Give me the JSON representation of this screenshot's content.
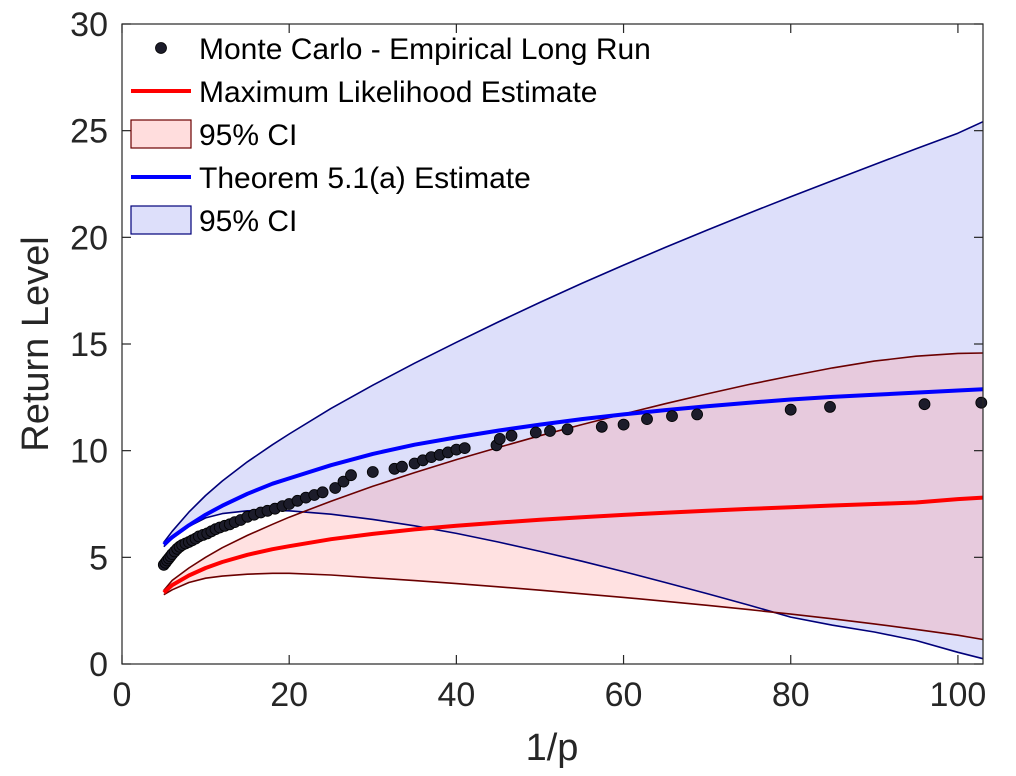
{
  "chart_data": {
    "type": "line",
    "xlabel": "1/p",
    "ylabel": "Return Level",
    "xlim": [
      0,
      103
    ],
    "ylim": [
      0,
      30
    ],
    "xticks": [
      "0",
      "20",
      "40",
      "60",
      "80",
      "100"
    ],
    "yticks": [
      "0",
      "5",
      "10",
      "15",
      "20",
      "25",
      "30"
    ],
    "legend_position": "top-left",
    "legend": [
      {
        "label": "Monte Carlo - Empirical Long Run",
        "kind": "marker",
        "color": "#000000"
      },
      {
        "label": "Maximum Likelihood Estimate",
        "kind": "line",
        "color": "#ff0000"
      },
      {
        "label": "95% CI",
        "kind": "patch",
        "color": "#ffdddd",
        "edge": "#6b0000"
      },
      {
        "label": "Theorem 5.1(a) Estimate",
        "kind": "line",
        "color": "#0000ff"
      },
      {
        "label": "95% CI",
        "kind": "patch",
        "color": "#dddffa",
        "edge": "#00007a"
      }
    ],
    "curve_x": [
      5,
      6,
      8,
      10,
      12,
      15,
      18,
      20,
      25,
      30,
      35,
      40,
      45,
      50,
      55,
      60,
      65,
      70,
      75,
      80,
      85,
      90,
      95,
      100,
      103
    ],
    "series": [
      {
        "name": "Maximum Likelihood Estimate",
        "color": "#ff0000",
        "values": [
          3.35,
          3.7,
          4.15,
          4.5,
          4.78,
          5.12,
          5.38,
          5.52,
          5.85,
          6.1,
          6.31,
          6.48,
          6.63,
          6.76,
          6.88,
          6.99,
          7.09,
          7.18,
          7.27,
          7.35,
          7.43,
          7.5,
          7.57,
          7.73,
          7.8
        ]
      },
      {
        "name": "MLE 95% CI lower",
        "color": "#6b0000",
        "values": [
          3.25,
          3.48,
          3.82,
          4.02,
          4.12,
          4.21,
          4.25,
          4.25,
          4.17,
          4.04,
          3.91,
          3.77,
          3.62,
          3.46,
          3.29,
          3.12,
          2.94,
          2.75,
          2.55,
          2.34,
          2.12,
          1.88,
          1.62,
          1.35,
          1.15
        ]
      },
      {
        "name": "MLE 95% CI upper",
        "color": "#6b0000",
        "values": [
          3.45,
          3.92,
          4.5,
          5.0,
          5.45,
          6.03,
          6.55,
          6.88,
          7.63,
          8.33,
          8.97,
          9.58,
          10.15,
          10.7,
          11.22,
          11.72,
          12.2,
          12.66,
          13.1,
          13.5,
          13.88,
          14.2,
          14.43,
          14.56,
          14.58
        ]
      },
      {
        "name": "Theorem 5.1(a) Estimate",
        "color": "#0000ff",
        "values": [
          5.6,
          5.95,
          6.5,
          7.0,
          7.42,
          7.98,
          8.45,
          8.7,
          9.32,
          9.85,
          10.28,
          10.62,
          10.94,
          11.22,
          11.48,
          11.7,
          11.9,
          12.08,
          12.25,
          12.4,
          12.52,
          12.62,
          12.72,
          12.82,
          12.88
        ]
      },
      {
        "name": "Theorem 5.1(a) 95% CI lower",
        "color": "#00007a",
        "values": [
          5.5,
          5.88,
          6.45,
          6.85,
          7.05,
          7.18,
          7.2,
          7.18,
          7.02,
          6.78,
          6.48,
          6.12,
          5.72,
          5.28,
          4.82,
          4.33,
          3.82,
          3.3,
          2.76,
          2.2,
          1.82,
          1.5,
          1.1,
          0.55,
          0.25
        ]
      },
      {
        "name": "Theorem 5.1(a) 95% CI upper",
        "color": "#00007a",
        "values": [
          5.7,
          6.22,
          7.12,
          7.9,
          8.58,
          9.48,
          10.28,
          10.78,
          11.98,
          13.07,
          14.1,
          15.08,
          16.03,
          16.95,
          17.84,
          18.7,
          19.53,
          20.34,
          21.13,
          21.9,
          22.66,
          23.41,
          24.15,
          24.88,
          25.42
        ]
      }
    ],
    "empirical_points": {
      "name": "Monte Carlo - Empirical Long Run",
      "color": "#000000",
      "x": [
        5.0,
        5.2,
        5.4,
        5.6,
        5.8,
        6.0,
        6.3,
        6.6,
        6.9,
        7.2,
        7.6,
        8.0,
        8.4,
        8.8,
        9.2,
        9.7,
        10.2,
        10.7,
        11.2,
        11.7,
        12.3,
        12.9,
        13.5,
        14.2,
        15.0,
        15.8,
        16.6,
        17.4,
        18.3,
        19.2,
        20.0,
        21.0,
        22.0,
        23.0,
        24.0,
        25.5,
        26.5,
        27.4,
        30.0,
        32.6,
        33.5,
        35.0,
        36.0,
        37.0,
        38.0,
        39.0,
        40.0,
        41.0,
        44.8,
        45.2,
        46.6,
        49.5,
        51.2,
        53.3,
        57.4,
        60.0,
        62.8,
        65.8,
        68.8,
        80.0,
        84.7,
        96.0,
        102.8
      ],
      "y": [
        4.65,
        4.75,
        4.85,
        4.95,
        5.05,
        5.15,
        5.28,
        5.4,
        5.5,
        5.58,
        5.65,
        5.72,
        5.8,
        5.88,
        5.98,
        6.05,
        6.12,
        6.22,
        6.32,
        6.4,
        6.48,
        6.55,
        6.65,
        6.75,
        6.9,
        7.0,
        7.1,
        7.18,
        7.28,
        7.4,
        7.5,
        7.65,
        7.8,
        7.92,
        8.05,
        8.25,
        8.55,
        8.85,
        9.0,
        9.15,
        9.25,
        9.4,
        9.55,
        9.7,
        9.8,
        9.92,
        10.05,
        10.12,
        10.25,
        10.55,
        10.7,
        10.85,
        10.92,
        11.0,
        11.12,
        11.22,
        11.48,
        11.62,
        11.7,
        11.92,
        12.05,
        12.18,
        12.25
      ]
    }
  }
}
